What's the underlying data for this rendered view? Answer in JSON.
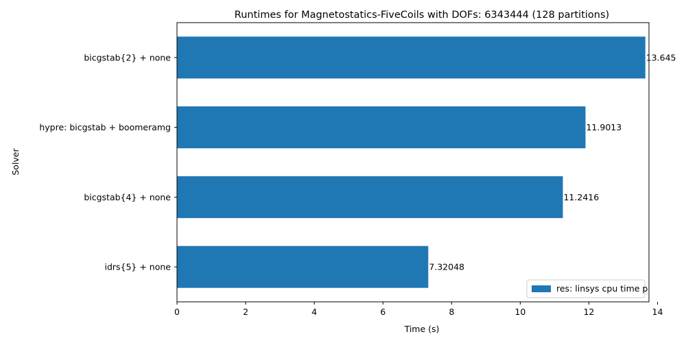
{
  "chart_data": {
    "type": "bar",
    "orientation": "horizontal",
    "title": "Runtimes for Magnetostatics-FiveCoils with DOFs: 6343444 (128 partitions)",
    "xlabel": "Time (s)",
    "ylabel": "Solver",
    "categories": [
      "idrs{5} + none",
      "bicgstab{4} + none",
      "hypre: bicgstab + boomeramg",
      "bicgstab{2} + none"
    ],
    "series": [
      {
        "name": "res: linsys cpu time p",
        "values": [
          7.32048,
          11.2416,
          11.9013,
          13.645
        ],
        "labels": [
          "7.32048",
          "11.2416",
          "11.9013",
          "13.645"
        ],
        "color": "#1f77b4"
      }
    ],
    "xlim": [
      0,
      13.75
    ],
    "xticks": [
      0,
      2,
      4,
      6,
      8,
      10,
      12,
      14
    ],
    "grid": false,
    "legend_position": "lower right"
  }
}
